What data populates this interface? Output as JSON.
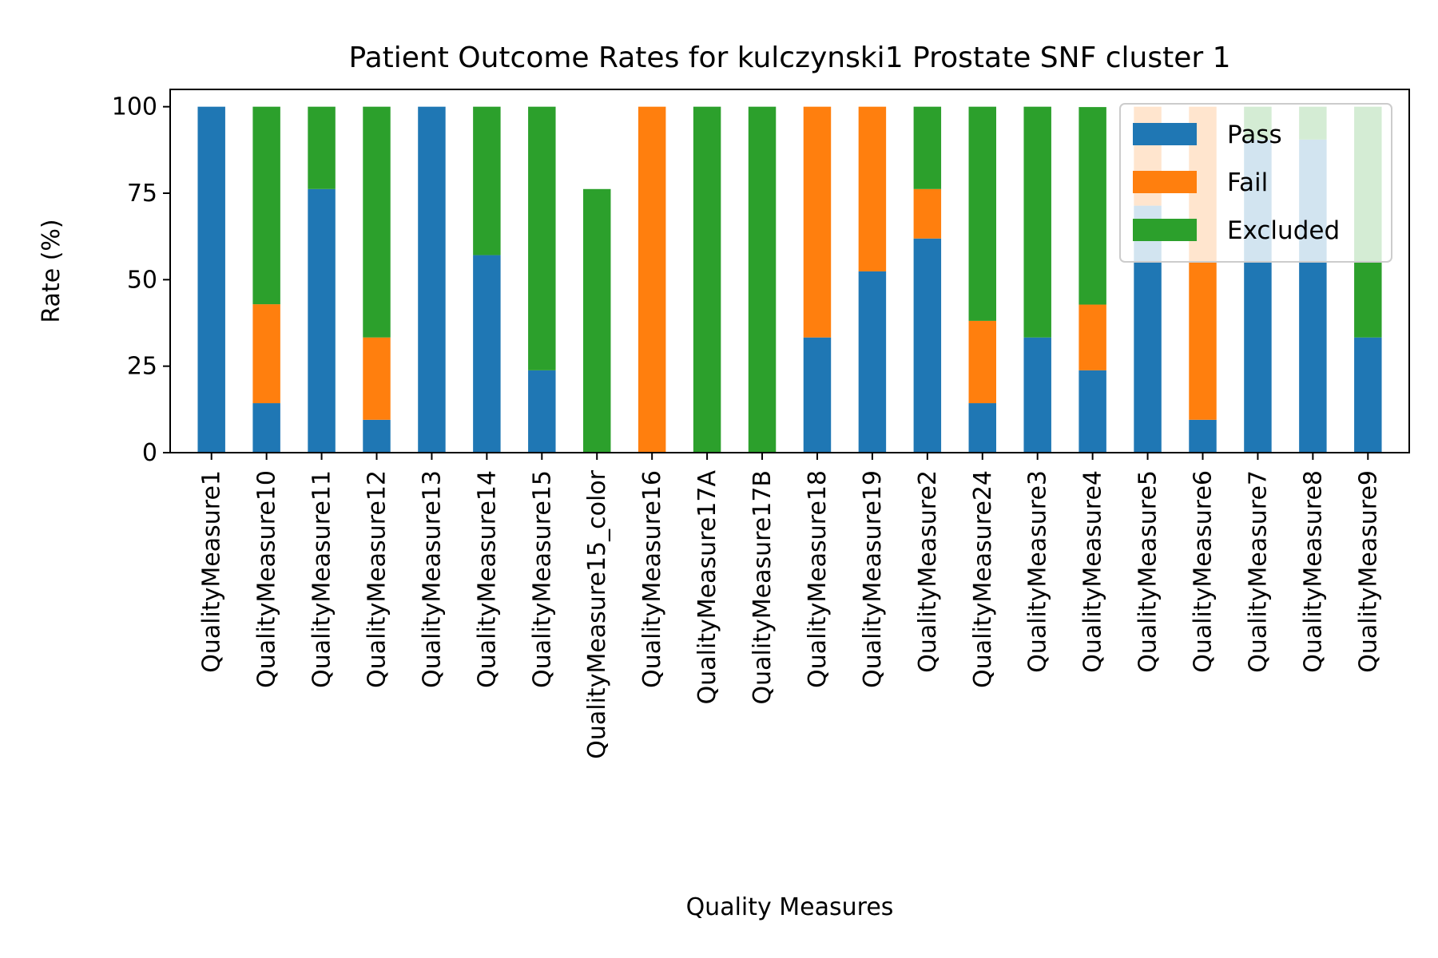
{
  "chart_data": {
    "type": "bar",
    "stacked": true,
    "title": "Patient Outcome Rates for kulczynski1 Prostate SNF cluster 1",
    "xlabel": "Quality Measures",
    "ylabel": "Rate (%)",
    "ylim": [
      0,
      105
    ],
    "yticks": [
      0,
      25,
      50,
      75,
      100
    ],
    "grid": false,
    "legend_position": "top-right",
    "categories": [
      "QualityMeasure1",
      "QualityMeasure10",
      "QualityMeasure11",
      "QualityMeasure12",
      "QualityMeasure13",
      "QualityMeasure14",
      "QualityMeasure15",
      "QualityMeasure15_color",
      "QualityMeasure16",
      "QualityMeasure17A",
      "QualityMeasure17B",
      "QualityMeasure18",
      "QualityMeasure19",
      "QualityMeasure2",
      "QualityMeasure24",
      "QualityMeasure3",
      "QualityMeasure4",
      "QualityMeasure5",
      "QualityMeasure6",
      "QualityMeasure7",
      "QualityMeasure8",
      "QualityMeasure9"
    ],
    "series": [
      {
        "name": "Pass",
        "color": "#1f77b4",
        "values": [
          100,
          14.3,
          76.2,
          9.5,
          100,
          57.1,
          23.8,
          0,
          0,
          0,
          0,
          33.3,
          52.4,
          61.9,
          14.3,
          33.3,
          23.8,
          71.4,
          9.5,
          90.5,
          90.5,
          33.3
        ]
      },
      {
        "name": "Fail",
        "color": "#ff7f0e",
        "values": [
          0,
          28.6,
          0,
          23.8,
          0,
          0,
          0,
          0,
          100,
          0,
          0,
          66.7,
          47.6,
          14.3,
          23.8,
          0,
          19.0,
          28.6,
          90.5,
          0,
          0,
          0
        ]
      },
      {
        "name": "Excluded",
        "color": "#2ca02c",
        "values": [
          0,
          57.1,
          23.8,
          66.7,
          0,
          42.9,
          76.2,
          76.2,
          0,
          100,
          100,
          0,
          0,
          23.8,
          61.9,
          66.7,
          57.1,
          0,
          0,
          9.5,
          9.5,
          66.7
        ]
      }
    ]
  }
}
